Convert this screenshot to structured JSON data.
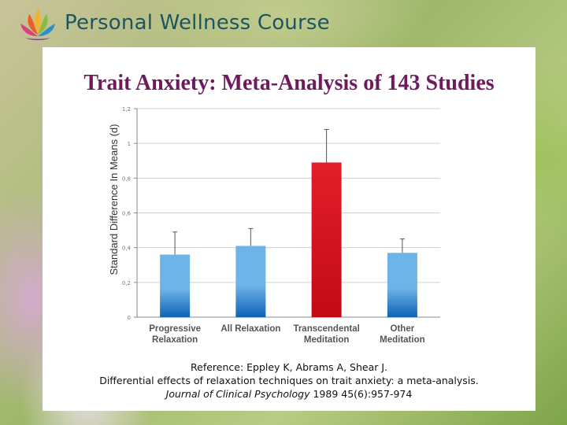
{
  "header": {
    "brand": "Personal Wellness Course",
    "logo_icon": "lotus-icon"
  },
  "slide": {
    "title": "Trait Anxiety: Meta-Analysis of 143 Studies"
  },
  "reference": {
    "line1": "Reference: Eppley K, Abrams A, Shear J.",
    "line2": "Differential effects of relaxation techniques on trait anxiety: a meta-analysis.",
    "journal": "Journal of Clinical Psychology",
    "citation": "1989 45(6):957-974"
  },
  "colors": {
    "title": "#6e1a5d",
    "blue_bar_top": "#6db4e8",
    "blue_bar_bottom": "#0d62b6",
    "red_bar": "#d80f1c"
  },
  "chart_data": {
    "type": "bar",
    "title": "",
    "xlabel": "",
    "ylabel": "Standard Difference In Means (d)",
    "ylim": [
      0,
      1.2
    ],
    "yticks": [
      0,
      0.2,
      0.4,
      0.6,
      0.8,
      1,
      1.2
    ],
    "ytick_labels": [
      "0",
      "0,2",
      "0,4",
      "0,6",
      "0,8",
      "1",
      "1,2"
    ],
    "grid": true,
    "categories": [
      [
        "Progressive",
        "Relaxation"
      ],
      [
        "All Relaxation"
      ],
      [
        "Transcendental",
        "Meditation"
      ],
      [
        "Other",
        "Meditation"
      ]
    ],
    "values": [
      0.36,
      0.41,
      0.89,
      0.37
    ],
    "error_upper": [
      0.49,
      0.51,
      1.08,
      0.45
    ],
    "highlight_index": 2
  }
}
